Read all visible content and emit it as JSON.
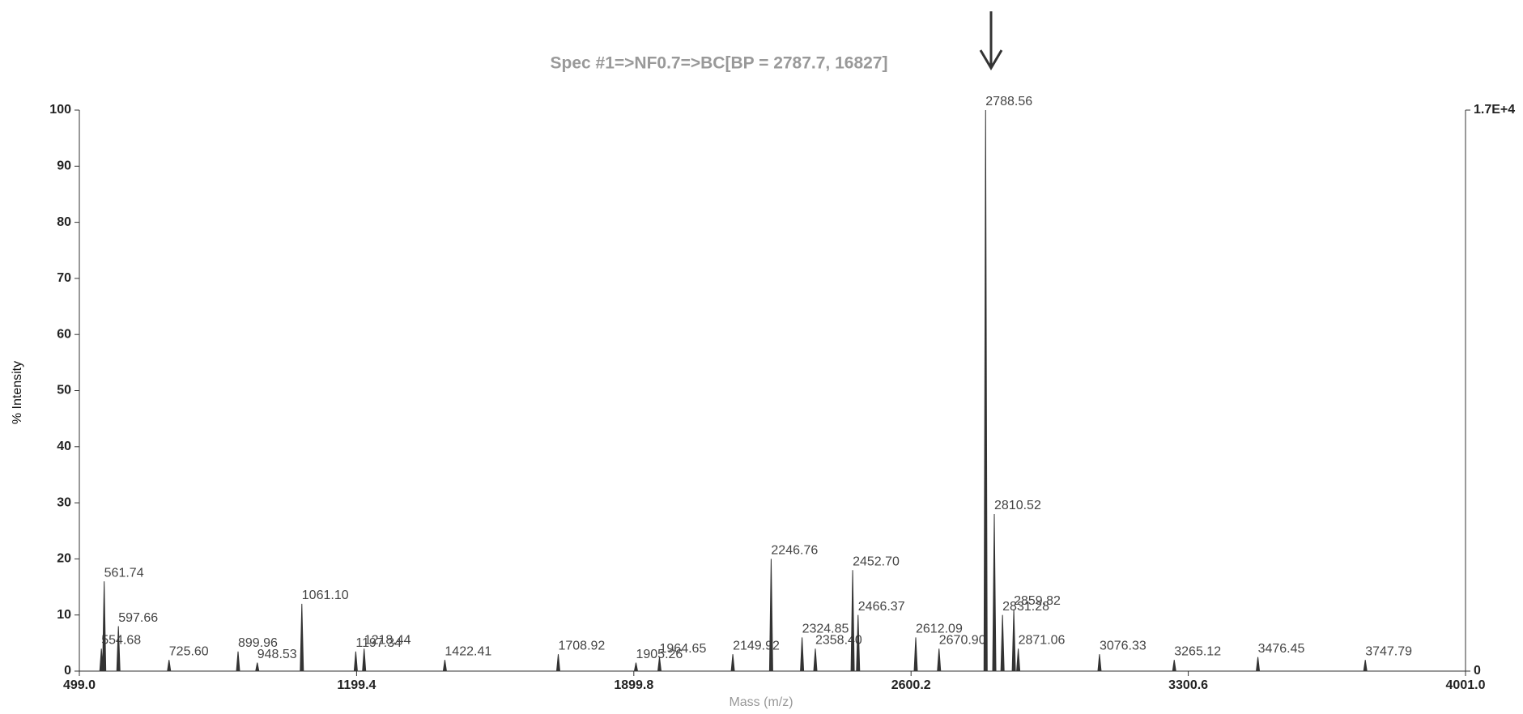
{
  "chart_data": {
    "type": "spectrum",
    "title": "Spec #1=>NF0.7=>BC[BP = 2787.7, 16827]",
    "x_label": "Mass (m/z)",
    "y_label": "% Intensity",
    "color": "#333333",
    "x": [
      554.68,
      561.74,
      597.66,
      725.6,
      899.96,
      948.53,
      1061.1,
      1197.34,
      1218.44,
      1422.41,
      1708.92,
      1905.26,
      1964.65,
      2149.92,
      2246.76,
      2324.85,
      2358.4,
      2452.7,
      2466.37,
      2612.09,
      2670.9,
      2788.56,
      2810.52,
      2831.28,
      2859.82,
      2871.06,
      3076.33,
      3265.12,
      3476.45,
      3747.79
    ],
    "x_labels": [
      "554.68",
      "561.74",
      "597.66",
      "725.60",
      "899.96",
      "948.53",
      "1061.10",
      "1197.34",
      "1218.44",
      "1422.41",
      "1708.92",
      "1905.26",
      "1964.65",
      "2149.92",
      "2246.76",
      "2324.85",
      "2358.40",
      "2452.70",
      "2466.37",
      "2612.09",
      "2670.90",
      "2788.56",
      "2810.52",
      "2831.28",
      "2859.82",
      "2871.06",
      "3076.33",
      "3265.12",
      "3476.45",
      "3747.79"
    ],
    "values": [
      4,
      16,
      8,
      2,
      3.5,
      1.5,
      12,
      3.5,
      4,
      2,
      3,
      1.5,
      2.5,
      3,
      20,
      6,
      4,
      18,
      10,
      6,
      4,
      100,
      28,
      10,
      11,
      4,
      3,
      2,
      2.5,
      2
    ],
    "xlim": [
      499.0,
      4001.0
    ],
    "xticks": [
      {
        "value": 499.0,
        "label": "499.0"
      },
      1199.4,
      1899.8,
      2600.2,
      3300.6,
      {
        "value": 4001.0,
        "label": "4001.0"
      }
    ],
    "ylim": [
      0,
      100
    ],
    "yticks": [
      0,
      10,
      20,
      30,
      40,
      50,
      60,
      70,
      80,
      90,
      100
    ],
    "y2lim": [
      0,
      16827
    ],
    "y2ticks": [
      0,
      {
        "value": 16827,
        "label": "1.7E+4"
      }
    ]
  }
}
